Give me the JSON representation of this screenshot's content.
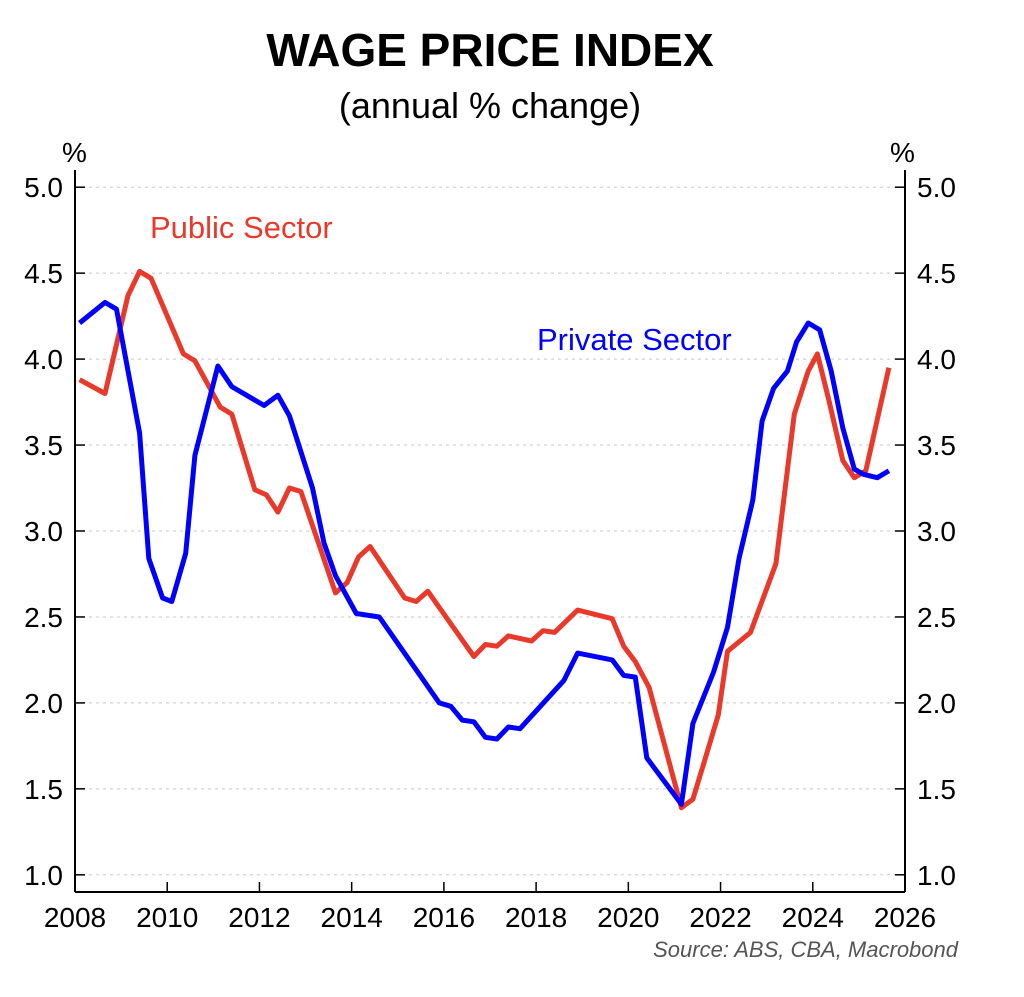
{
  "chart_data": {
    "type": "line",
    "title": "WAGE PRICE INDEX",
    "subtitle": "(annual % change)",
    "ylabel_left": "%",
    "ylabel_right": "%",
    "xlim": [
      2008,
      2026
    ],
    "ylim": [
      0.9,
      5.1
    ],
    "x_ticks": [
      2008,
      2010,
      2012,
      2014,
      2016,
      2018,
      2020,
      2022,
      2024,
      2026
    ],
    "y_ticks": [
      "1.0",
      "1.5",
      "2.0",
      "2.5",
      "3.0",
      "3.5",
      "4.0",
      "4.5",
      "5.0"
    ],
    "grid": true,
    "source": "Source: ABS, CBA, Macrobond",
    "series": [
      {
        "name": "Private Sector",
        "color": "#0000ff",
        "points": [
          [
            2008.1,
            4.21
          ],
          [
            2008.65,
            4.33
          ],
          [
            2008.9,
            4.29
          ],
          [
            2009.4,
            3.57
          ],
          [
            2009.6,
            2.84
          ],
          [
            2009.9,
            2.61
          ],
          [
            2010.1,
            2.59
          ],
          [
            2010.4,
            2.87
          ],
          [
            2010.6,
            3.44
          ],
          [
            2011.1,
            3.96
          ],
          [
            2011.4,
            3.84
          ],
          [
            2012.1,
            3.73
          ],
          [
            2012.4,
            3.79
          ],
          [
            2012.65,
            3.67
          ],
          [
            2013.15,
            3.25
          ],
          [
            2013.4,
            2.93
          ],
          [
            2013.65,
            2.74
          ],
          [
            2014.1,
            2.52
          ],
          [
            2014.6,
            2.5
          ],
          [
            2015.9,
            2.0
          ],
          [
            2016.15,
            1.98
          ],
          [
            2016.4,
            1.9
          ],
          [
            2016.65,
            1.89
          ],
          [
            2016.9,
            1.8
          ],
          [
            2017.15,
            1.79
          ],
          [
            2017.4,
            1.86
          ],
          [
            2017.65,
            1.85
          ],
          [
            2018.6,
            2.13
          ],
          [
            2018.9,
            2.29
          ],
          [
            2019.65,
            2.25
          ],
          [
            2019.9,
            2.16
          ],
          [
            2020.15,
            2.15
          ],
          [
            2020.4,
            1.68
          ],
          [
            2021.15,
            1.41
          ],
          [
            2021.4,
            1.88
          ],
          [
            2021.85,
            2.18
          ],
          [
            2022.15,
            2.44
          ],
          [
            2022.4,
            2.84
          ],
          [
            2022.7,
            3.18
          ],
          [
            2022.9,
            3.64
          ],
          [
            2023.15,
            3.83
          ],
          [
            2023.45,
            3.93
          ],
          [
            2023.65,
            4.1
          ],
          [
            2023.9,
            4.21
          ],
          [
            2024.15,
            4.17
          ],
          [
            2024.4,
            3.93
          ],
          [
            2024.65,
            3.6
          ],
          [
            2024.9,
            3.36
          ],
          [
            2025.1,
            3.33
          ],
          [
            2025.4,
            3.31
          ],
          [
            2025.65,
            3.35
          ]
        ]
      },
      {
        "name": "Public Sector",
        "color": "#e8392a",
        "points": [
          [
            2008.1,
            3.88
          ],
          [
            2008.65,
            3.8
          ],
          [
            2009.15,
            4.37
          ],
          [
            2009.4,
            4.51
          ],
          [
            2009.65,
            4.47
          ],
          [
            2010.35,
            4.03
          ],
          [
            2010.6,
            3.99
          ],
          [
            2011.15,
            3.72
          ],
          [
            2011.4,
            3.68
          ],
          [
            2011.9,
            3.24
          ],
          [
            2012.15,
            3.21
          ],
          [
            2012.4,
            3.11
          ],
          [
            2012.65,
            3.25
          ],
          [
            2012.9,
            3.23
          ],
          [
            2013.65,
            2.64
          ],
          [
            2013.9,
            2.7
          ],
          [
            2014.15,
            2.85
          ],
          [
            2014.4,
            2.91
          ],
          [
            2015.15,
            2.61
          ],
          [
            2015.4,
            2.59
          ],
          [
            2015.65,
            2.65
          ],
          [
            2016.65,
            2.27
          ],
          [
            2016.9,
            2.34
          ],
          [
            2017.15,
            2.33
          ],
          [
            2017.4,
            2.39
          ],
          [
            2017.9,
            2.36
          ],
          [
            2018.15,
            2.42
          ],
          [
            2018.4,
            2.41
          ],
          [
            2018.9,
            2.54
          ],
          [
            2019.65,
            2.49
          ],
          [
            2019.9,
            2.33
          ],
          [
            2020.15,
            2.24
          ],
          [
            2020.45,
            2.09
          ],
          [
            2021.15,
            1.39
          ],
          [
            2021.4,
            1.44
          ],
          [
            2021.65,
            1.66
          ],
          [
            2021.95,
            1.93
          ],
          [
            2022.15,
            2.3
          ],
          [
            2022.65,
            2.41
          ],
          [
            2023.2,
            2.81
          ],
          [
            2023.6,
            3.68
          ],
          [
            2023.9,
            3.93
          ],
          [
            2024.1,
            4.03
          ],
          [
            2024.35,
            3.76
          ],
          [
            2024.65,
            3.41
          ],
          [
            2024.9,
            3.31
          ],
          [
            2025.15,
            3.35
          ],
          [
            2025.65,
            3.95
          ]
        ]
      }
    ]
  }
}
